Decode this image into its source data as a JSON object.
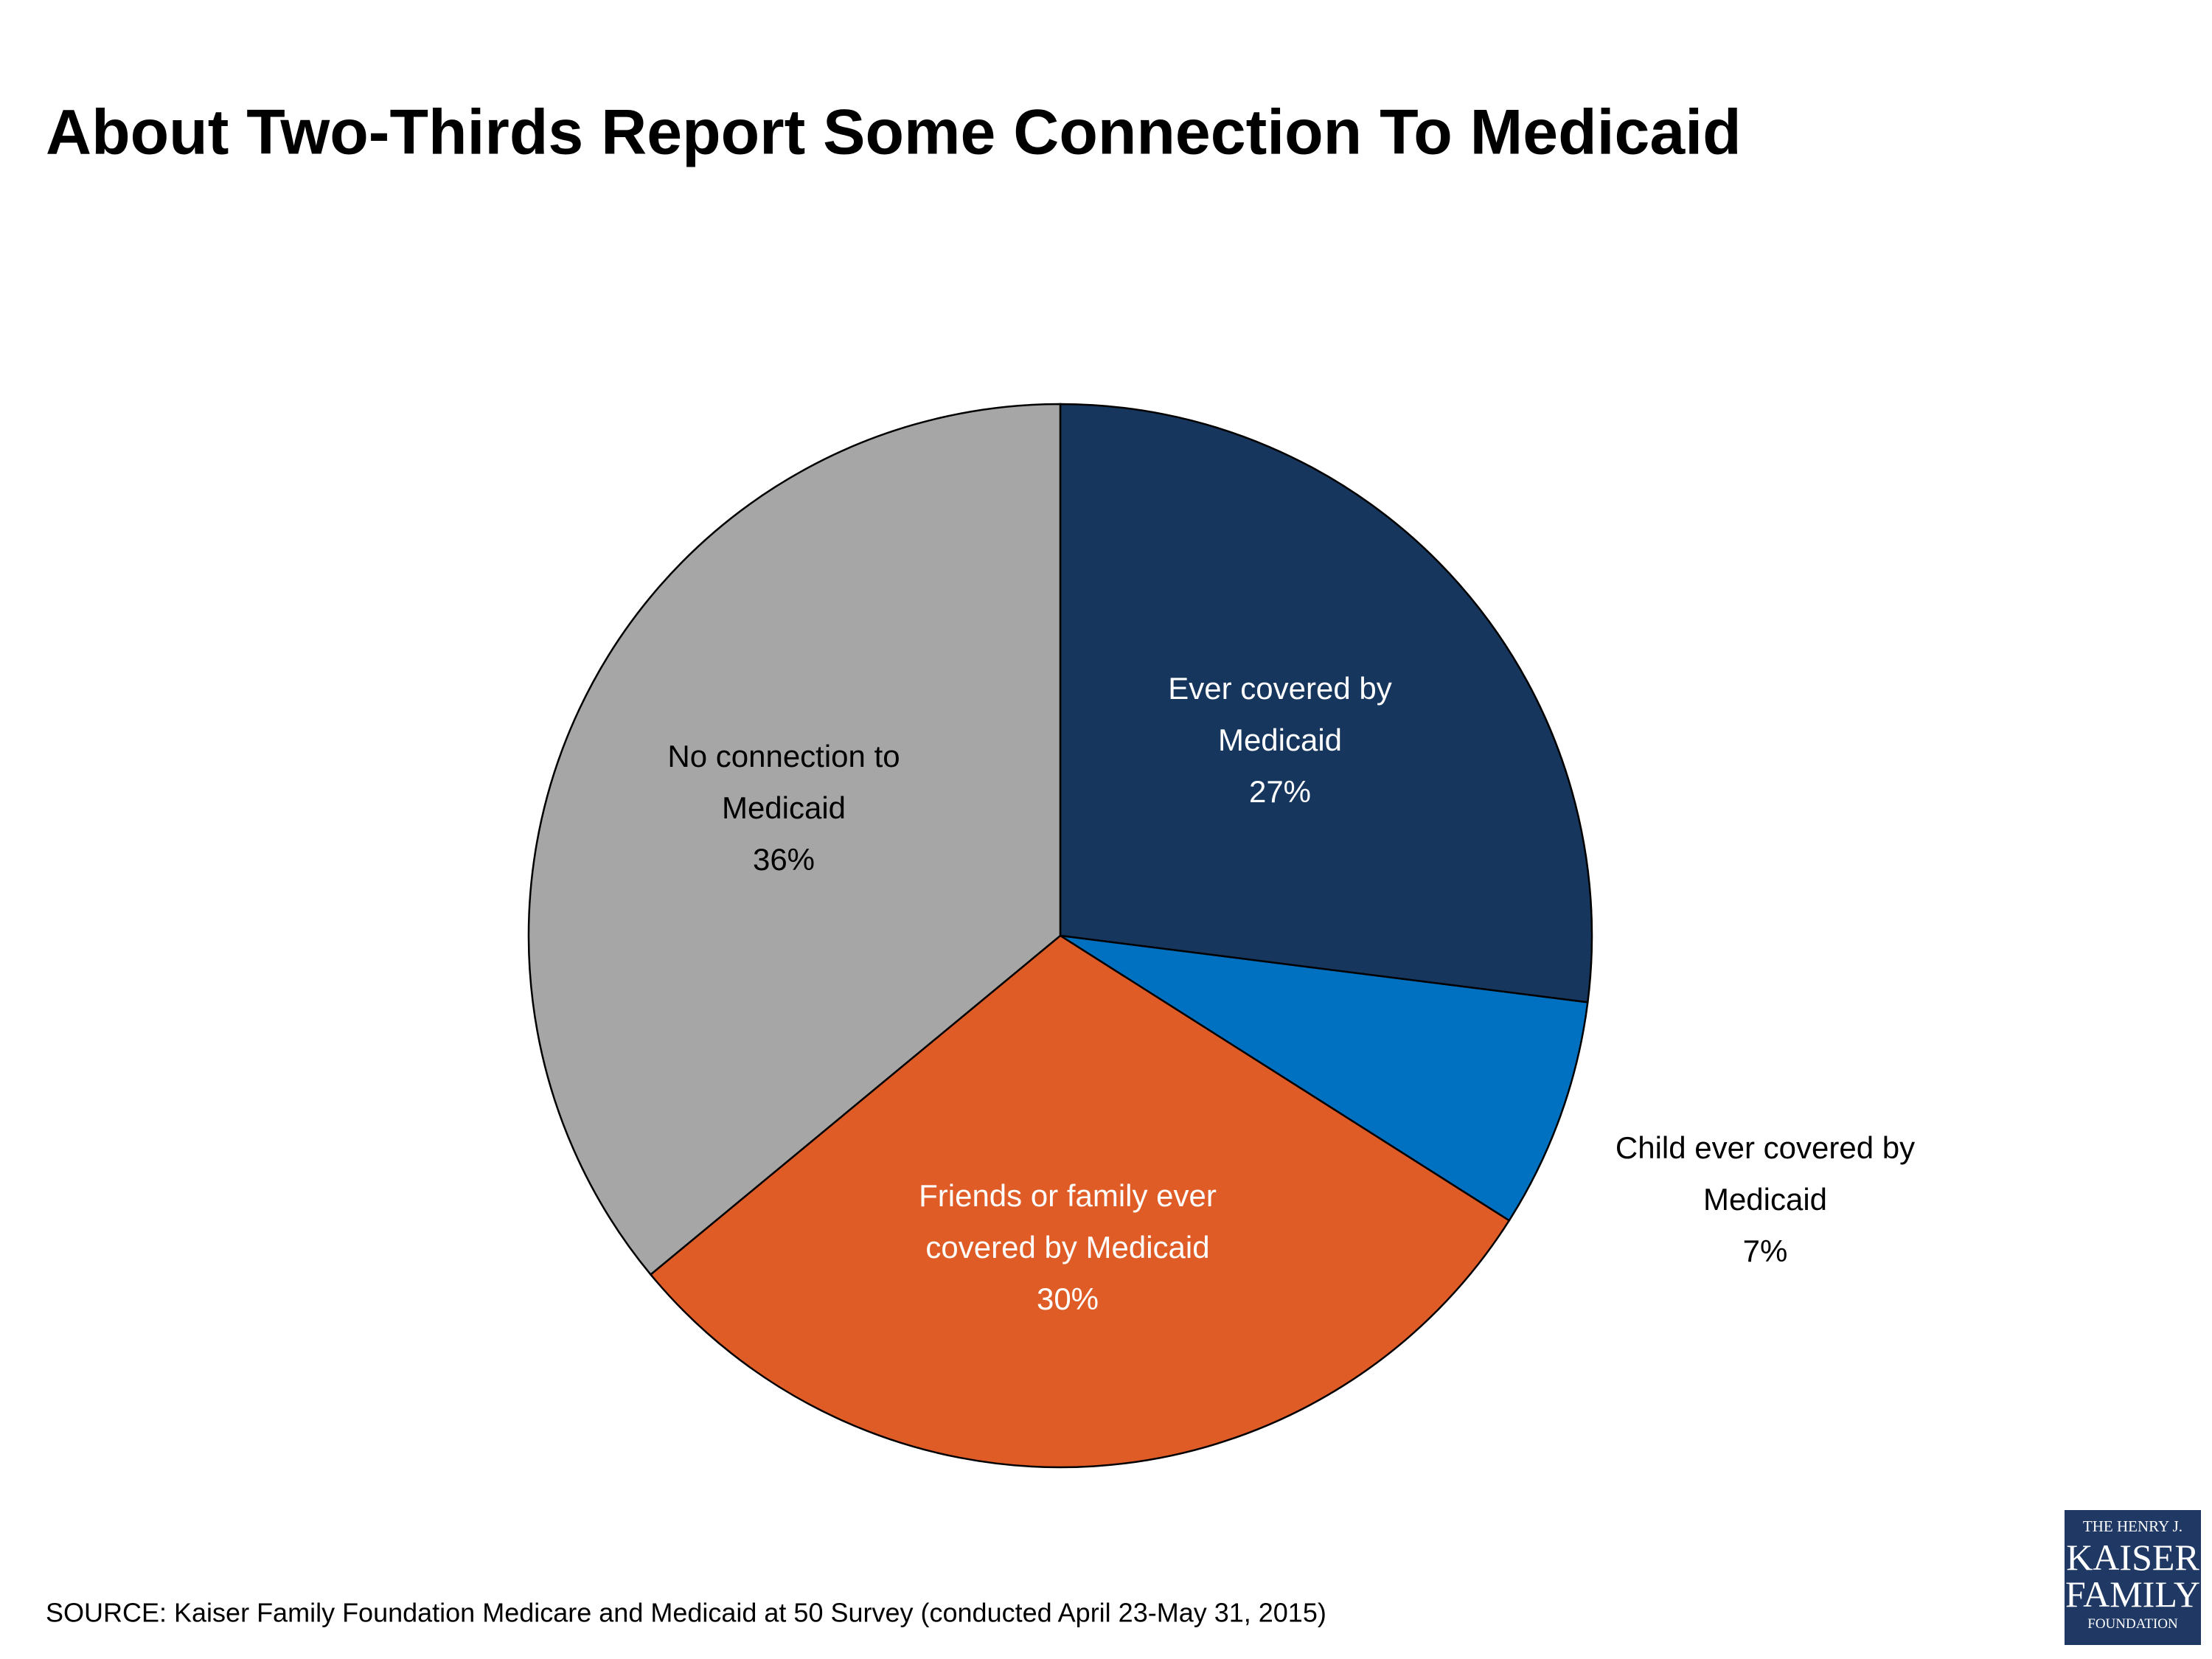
{
  "chart_data": {
    "type": "pie",
    "title": "About Two-Thirds Report Some Connection To Medicaid",
    "categories": [
      "Ever covered by Medicaid",
      "Child ever covered by Medicaid",
      "Friends or family ever covered by Medicaid",
      "No connection to Medicaid"
    ],
    "values": [
      27,
      7,
      30,
      36
    ],
    "value_labels": [
      "27%",
      "7%",
      "30%",
      "36%"
    ],
    "colors": [
      "#17365d",
      "#0070c0",
      "#e05c27",
      "#a6a6a6"
    ],
    "source": "SOURCE: Kaiser Family Foundation Medicare and Medicaid at 50 Survey (conducted April 23-May 31, 2015)"
  },
  "logo": {
    "lines": [
      "THE HENRY J.",
      "KAISER",
      "FAMILY",
      "FOUNDATION"
    ]
  }
}
